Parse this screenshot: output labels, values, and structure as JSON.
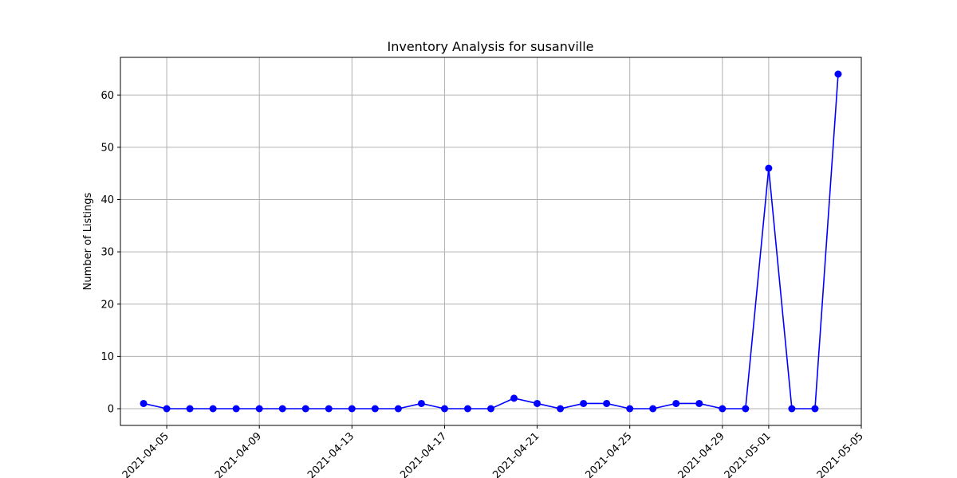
{
  "chart_data": {
    "type": "line",
    "title": "Inventory Analysis for susanville",
    "xlabel": "",
    "ylabel": "Number of Listings",
    "x": [
      "2021-04-04",
      "2021-04-05",
      "2021-04-06",
      "2021-04-07",
      "2021-04-08",
      "2021-04-09",
      "2021-04-10",
      "2021-04-11",
      "2021-04-12",
      "2021-04-13",
      "2021-04-14",
      "2021-04-15",
      "2021-04-16",
      "2021-04-17",
      "2021-04-18",
      "2021-04-19",
      "2021-04-20",
      "2021-04-21",
      "2021-04-22",
      "2021-04-23",
      "2021-04-24",
      "2021-04-25",
      "2021-04-26",
      "2021-04-27",
      "2021-04-28",
      "2021-04-29",
      "2021-04-30",
      "2021-05-01",
      "2021-05-02",
      "2021-05-03",
      "2021-05-04"
    ],
    "values": [
      1,
      0,
      0,
      0,
      0,
      0,
      0,
      0,
      0,
      0,
      0,
      0,
      1,
      0,
      0,
      0,
      2,
      1,
      0,
      1,
      1,
      0,
      0,
      1,
      1,
      0,
      0,
      46,
      0,
      0,
      64
    ],
    "xlim": [
      "2021-04-03",
      "2021-05-05"
    ],
    "ylim": [
      -3.2,
      67.2
    ],
    "x_ticks": [
      "2021-04-05",
      "2021-04-09",
      "2021-04-13",
      "2021-04-17",
      "2021-04-21",
      "2021-04-25",
      "2021-04-29",
      "2021-05-01",
      "2021-05-05"
    ],
    "y_ticks": [
      0,
      10,
      20,
      30,
      40,
      50,
      60
    ],
    "grid": true,
    "line_color": "#0000ff",
    "marker": "circle"
  }
}
